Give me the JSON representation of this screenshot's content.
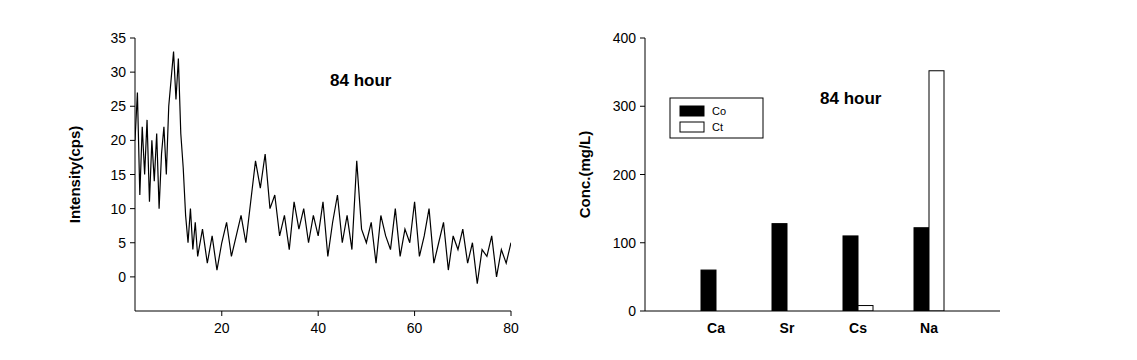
{
  "chart_data": [
    {
      "type": "line",
      "annotation": "84 hour",
      "y_label": "Intensity(cps)",
      "color": "#000000",
      "x": [
        2,
        2.5,
        3,
        3.5,
        4,
        4.5,
        5,
        5.5,
        6,
        6.5,
        7,
        7.5,
        8,
        8.5,
        9,
        9.5,
        10,
        10.5,
        11,
        11.5,
        12,
        12.5,
        13,
        13.5,
        14,
        14.5,
        15,
        16,
        17,
        18,
        19,
        20,
        21,
        22,
        23,
        24,
        25,
        26,
        27,
        28,
        29,
        30,
        31,
        32,
        33,
        34,
        35,
        36,
        37,
        38,
        39,
        40,
        41,
        42,
        43,
        44,
        45,
        46,
        47,
        48,
        49,
        50,
        51,
        52,
        53,
        54,
        55,
        56,
        57,
        58,
        59,
        60,
        61,
        62,
        63,
        64,
        65,
        66,
        67,
        68,
        69,
        70,
        71,
        72,
        73,
        74,
        75,
        76,
        77,
        78,
        79,
        80
      ],
      "values": [
        20,
        27,
        12,
        22,
        15,
        23,
        11,
        20,
        14,
        21,
        10,
        18,
        22,
        15,
        25,
        29,
        33,
        26,
        32,
        21,
        16,
        9,
        5,
        10,
        4,
        8,
        3,
        7,
        2,
        6,
        1,
        5,
        8,
        3,
        6,
        9,
        5,
        11,
        17,
        13,
        18,
        10,
        12,
        6,
        9,
        4,
        11,
        7,
        10,
        5,
        9,
        6,
        11,
        3,
        8,
        12,
        5,
        9,
        4,
        17,
        7,
        5,
        8,
        2,
        9,
        6,
        4,
        10,
        3,
        7,
        5,
        11,
        3,
        6,
        10,
        2,
        5,
        8,
        1,
        6,
        4,
        7,
        2,
        5,
        -1,
        4,
        3,
        6,
        0,
        4,
        2,
        5
      ],
      "xlim": [
        2,
        80
      ],
      "xticks": [
        20,
        40,
        60,
        80
      ],
      "ylim": [
        -5,
        35
      ],
      "yticks": [
        0,
        5,
        10,
        15,
        20,
        25,
        30,
        35
      ]
    },
    {
      "type": "bar",
      "annotation": "84 hour",
      "y_label": "Conc.(mg/L)",
      "categories": [
        "Ca",
        "Sr",
        "Cs",
        "Na"
      ],
      "series": [
        {
          "name": "Co",
          "color": "#000000",
          "values": [
            60,
            128,
            110,
            122
          ]
        },
        {
          "name": "Ct",
          "color": "#ffffff",
          "values": [
            0,
            0,
            8,
            352
          ]
        }
      ],
      "ylim": [
        0,
        400
      ],
      "yticks": [
        0,
        100,
        200,
        300,
        400
      ],
      "legend": "top-left"
    }
  ]
}
